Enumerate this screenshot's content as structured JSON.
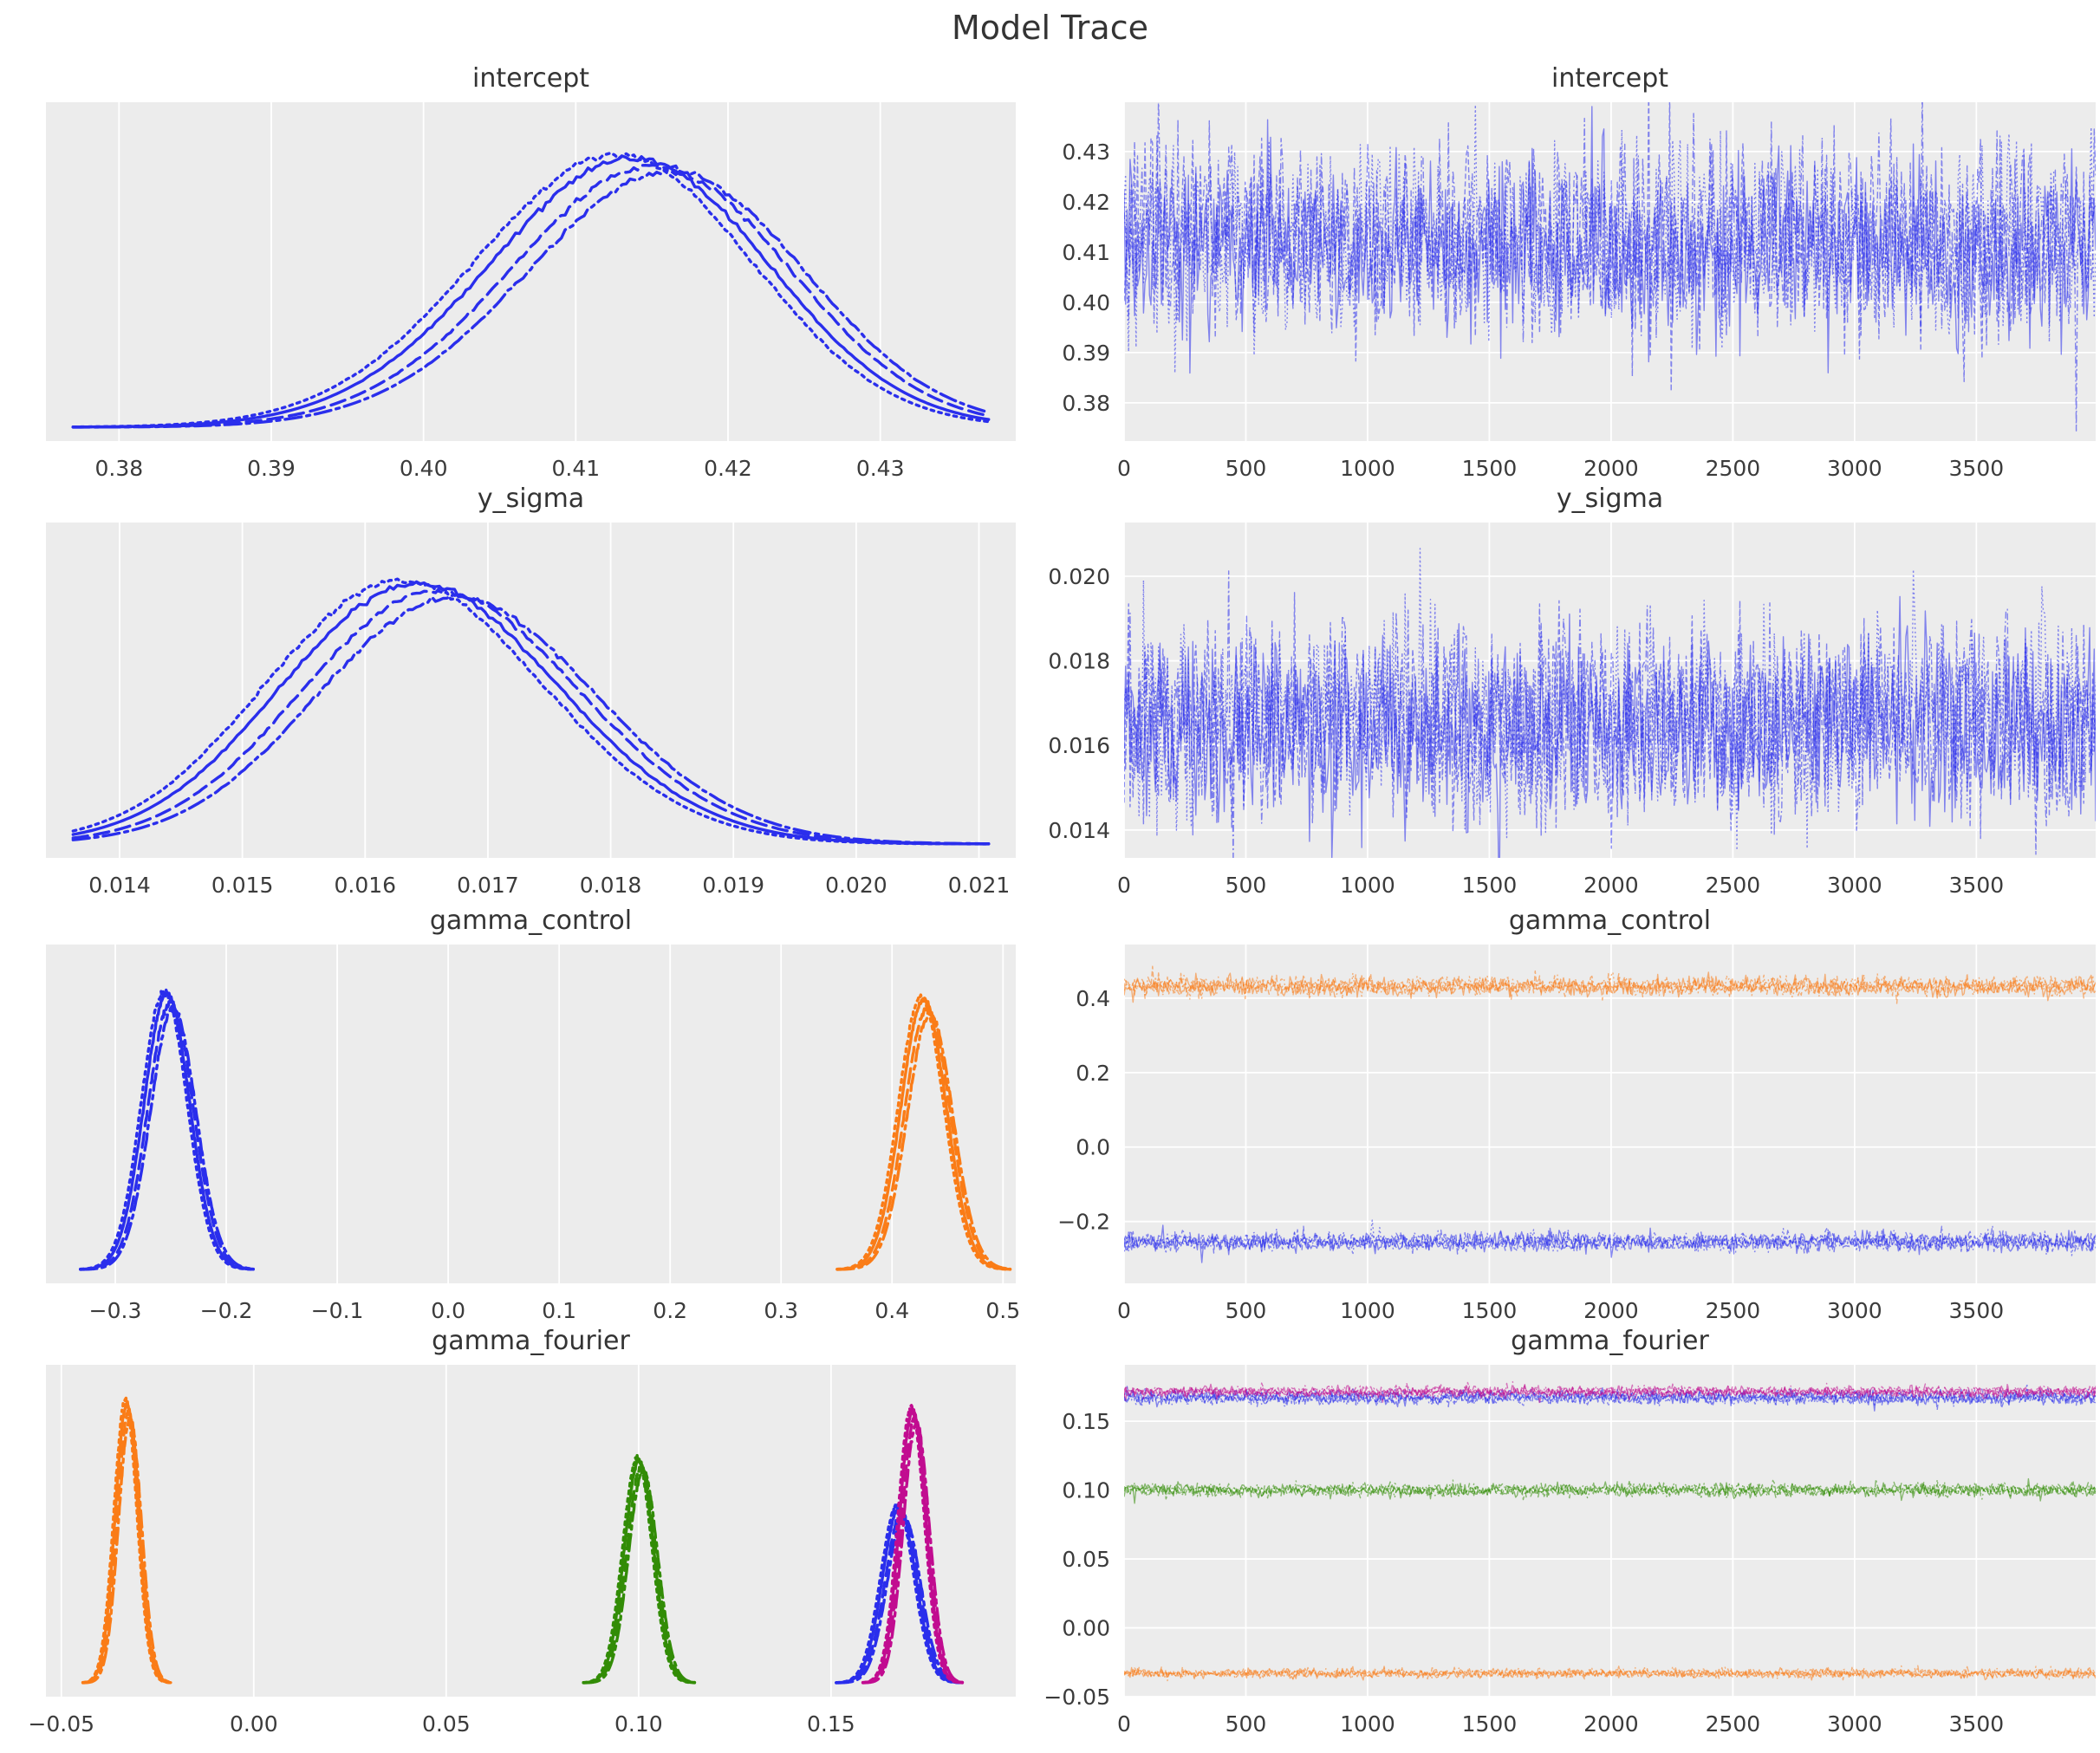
{
  "figure": {
    "title": "Model Trace"
  },
  "style": {
    "plot_bg": "#ececec",
    "grid_color": "#ffffff",
    "tick_text_color": "#3b3b3b",
    "title_color": "#343434",
    "palette": {
      "blue": "#2a2eec",
      "orange": "#fa7c17",
      "green": "#328c06",
      "magenta": "#c10c90"
    },
    "tick_font_px": 25
  },
  "chart_data": [
    {
      "type": "kde",
      "title": "intercept",
      "panel": "row1-left",
      "grid": "vertical",
      "xlim": [
        0.3752,
        0.4389
      ],
      "xticks": {
        "values": [
          0.38,
          0.39,
          0.4,
          0.41,
          0.42,
          0.43
        ],
        "labels": [
          "0.38",
          "0.39",
          "0.40",
          "0.41",
          "0.42",
          "0.43"
        ]
      },
      "chains": 4,
      "series": [
        {
          "name": "intercept",
          "color": "blue",
          "peak": 0.9,
          "tail": "full",
          "components": [
            {
              "m": 0.4108,
              "s": 0.0092,
              "w": 0.55
            },
            {
              "m": 0.4162,
              "s": 0.0082,
              "w": 0.5
            }
          ]
        }
      ]
    },
    {
      "type": "trace",
      "title": "intercept",
      "panel": "row1-right",
      "grid": "both",
      "draws": 3950,
      "xlim": [
        0,
        3990
      ],
      "ylim": [
        0.3724,
        0.4398
      ],
      "xticks": {
        "values": [
          0,
          500,
          1000,
          1500,
          2000,
          2500,
          3000,
          3500
        ],
        "labels": [
          "0",
          "500",
          "1000",
          "1500",
          "2000",
          "2500",
          "3000",
          "3500"
        ]
      },
      "yticks": {
        "values": [
          0.38,
          0.39,
          0.4,
          0.41,
          0.42,
          0.43
        ],
        "labels": [
          "0.38",
          "0.39",
          "0.40",
          "0.41",
          "0.42",
          "0.43"
        ]
      },
      "chains": 4,
      "series": [
        {
          "name": "intercept",
          "color": "blue",
          "mean": 0.4116,
          "sd": 0.0092
        }
      ]
    },
    {
      "type": "kde",
      "title": "y_sigma",
      "panel": "row2-left",
      "grid": "vertical",
      "xlim": [
        0.0134,
        0.0213
      ],
      "xticks": {
        "values": [
          0.014,
          0.015,
          0.016,
          0.017,
          0.018,
          0.019,
          0.02,
          0.021
        ],
        "labels": [
          "0.014",
          "0.015",
          "0.016",
          "0.017",
          "0.018",
          "0.019",
          "0.020",
          "0.021"
        ]
      },
      "chains": 4,
      "series": [
        {
          "name": "y_sigma",
          "color": "blue",
          "peak": 0.88,
          "tail": "full",
          "components": [
            {
              "m": 0.0161,
              "s": 0.00102,
              "w": 0.52
            },
            {
              "m": 0.0168,
              "s": 0.00112,
              "w": 0.55
            }
          ]
        }
      ]
    },
    {
      "type": "trace",
      "title": "y_sigma",
      "panel": "row2-right",
      "grid": "both",
      "draws": 3950,
      "xlim": [
        0,
        3990
      ],
      "ylim": [
        0.01334,
        0.02127
      ],
      "xticks": {
        "values": [
          0,
          500,
          1000,
          1500,
          2000,
          2500,
          3000,
          3500
        ],
        "labels": [
          "0",
          "500",
          "1000",
          "1500",
          "2000",
          "2500",
          "3000",
          "3500"
        ]
      },
      "yticks": {
        "values": [
          0.014,
          0.016,
          0.018,
          0.02
        ],
        "labels": [
          "0.014",
          "0.016",
          "0.018",
          "0.020"
        ]
      },
      "chains": 4,
      "series": [
        {
          "name": "y_sigma",
          "color": "blue",
          "mean": 0.01655,
          "sd": 0.00112
        }
      ]
    },
    {
      "type": "kde",
      "title": "gamma_control",
      "panel": "row3-left",
      "grid": "vertical",
      "xlim": [
        -0.3625,
        0.5115
      ],
      "xticks": {
        "values": [
          -0.3,
          -0.2,
          -0.1,
          0.0,
          0.1,
          0.2,
          0.3,
          0.4,
          0.5
        ],
        "labels": [
          "−0.3",
          "−0.2",
          "−0.1",
          "0.0",
          "0.1",
          "0.2",
          "0.3",
          "0.4",
          "0.5"
        ]
      },
      "chains": 4,
      "series": [
        {
          "name": "gamma_control[0]",
          "color": "blue",
          "peak": 0.92,
          "tail": "local",
          "components": [
            {
              "m": -0.2535,
              "s": 0.0205,
              "w": 1
            }
          ]
        },
        {
          "name": "gamma_control[1]",
          "color": "orange",
          "peak": 0.9,
          "tail": "local",
          "components": [
            {
              "m": 0.4285,
              "s": 0.0205,
              "w": 1
            }
          ]
        }
      ]
    },
    {
      "type": "trace",
      "title": "gamma_control",
      "panel": "row3-right",
      "grid": "both",
      "draws": 3950,
      "xlim": [
        0,
        3990
      ],
      "ylim": [
        -0.366,
        0.544
      ],
      "xticks": {
        "values": [
          0,
          500,
          1000,
          1500,
          2000,
          2500,
          3000,
          3500
        ],
        "labels": [
          "0",
          "500",
          "1000",
          "1500",
          "2000",
          "2500",
          "3000",
          "3500"
        ]
      },
      "yticks": {
        "values": [
          -0.2,
          0.0,
          0.2,
          0.4
        ],
        "labels": [
          "−0.2",
          "0.0",
          "0.2",
          "0.4"
        ]
      },
      "chains": 4,
      "series": [
        {
          "name": "gamma_control[1]",
          "color": "orange",
          "mean": 0.432,
          "sd": 0.0125
        },
        {
          "name": "gamma_control[0]",
          "color": "blue",
          "mean": -0.2545,
          "sd": 0.0125
        }
      ]
    },
    {
      "type": "kde",
      "title": "gamma_fourier",
      "panel": "row4-left",
      "grid": "vertical",
      "xlim": [
        -0.054,
        0.198
      ],
      "xticks": {
        "values": [
          -0.05,
          0.0,
          0.05,
          0.1,
          0.15
        ],
        "labels": [
          "−0.05",
          "0.00",
          "0.05",
          "0.10",
          "0.15"
        ]
      },
      "chains": 4,
      "series": [
        {
          "name": "gamma_fourier[0]",
          "color": "orange",
          "peak": 0.95,
          "tail": "local",
          "components": [
            {
              "m": -0.033,
              "s": 0.003,
              "w": 1
            }
          ]
        },
        {
          "name": "gamma_fourier[1]",
          "color": "green",
          "peak": 0.76,
          "tail": "local",
          "components": [
            {
              "m": 0.1001,
              "s": 0.0038,
              "w": 1
            }
          ]
        },
        {
          "name": "gamma_fourier[2]",
          "color": "blue",
          "peak": 0.6,
          "tail": "local",
          "components": [
            {
              "m": 0.1677,
              "s": 0.0043,
              "w": 1
            }
          ]
        },
        {
          "name": "gamma_fourier[3]",
          "color": "magenta",
          "peak": 0.93,
          "tail": "local",
          "components": [
            {
              "m": 0.1712,
              "s": 0.0034,
              "w": 1
            }
          ]
        }
      ]
    },
    {
      "type": "trace",
      "title": "gamma_fourier",
      "panel": "row4-right",
      "grid": "both",
      "draws": 3950,
      "xlim": [
        0,
        3990
      ],
      "ylim": [
        -0.05,
        0.191
      ],
      "xticks": {
        "values": [
          0,
          500,
          1000,
          1500,
          2000,
          2500,
          3000,
          3500
        ],
        "labels": [
          "0",
          "500",
          "1000",
          "1500",
          "2000",
          "2500",
          "3000",
          "3500"
        ]
      },
      "yticks": {
        "values": [
          -0.05,
          0.0,
          0.05,
          0.1,
          0.15
        ],
        "labels": [
          "−0.05",
          "0.00",
          "0.05",
          "0.10",
          "0.15"
        ]
      },
      "chains": 4,
      "series": [
        {
          "name": "gamma_fourier[2]",
          "color": "blue",
          "mean": 0.1672,
          "sd": 0.0024
        },
        {
          "name": "gamma_fourier[3]",
          "color": "magenta",
          "mean": 0.1714,
          "sd": 0.0019
        },
        {
          "name": "gamma_fourier[1]",
          "color": "green",
          "mean": 0.1001,
          "sd": 0.0023
        },
        {
          "name": "gamma_fourier[0]",
          "color": "orange",
          "mean": -0.0331,
          "sd": 0.0016
        }
      ]
    }
  ]
}
